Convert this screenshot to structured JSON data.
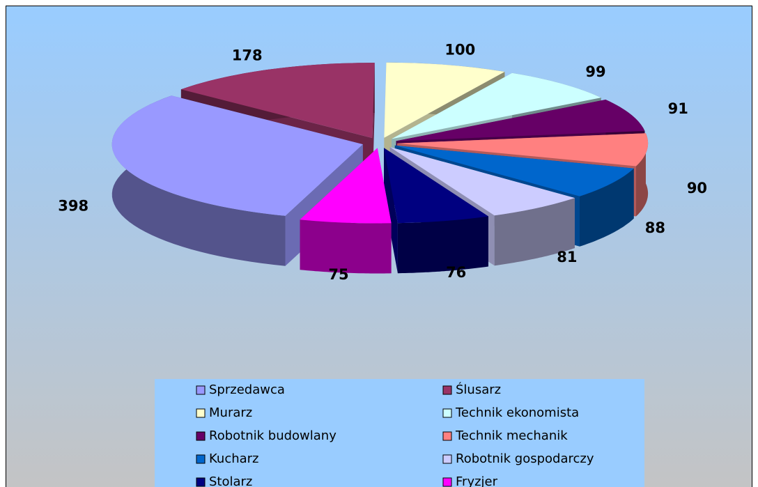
{
  "chart_data": {
    "type": "pie3d",
    "categories": [
      "Sprzedawca",
      "Ślusarz",
      "Murarz",
      "Technik ekonomista",
      "Robotnik budowlany",
      "Technik mechanik",
      "Kucharz",
      "Robotnik gospodarczy",
      "Stolarz",
      "Fryzjer"
    ],
    "values": [
      398,
      178,
      100,
      99,
      91,
      90,
      88,
      81,
      76,
      75
    ],
    "colors": [
      "#9999ff",
      "#993366",
      "#ffffcc",
      "#ccffff",
      "#660066",
      "#ff8080",
      "#0066cc",
      "#ccccff",
      "#000080",
      "#ff00ff"
    ],
    "legend": "bottom"
  }
}
